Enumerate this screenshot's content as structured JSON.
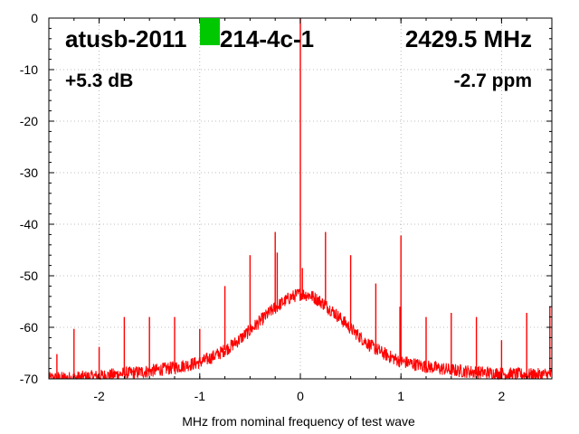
{
  "chart_data": {
    "type": "line",
    "xlabel": "MHz from nominal frequency of test wave",
    "ylabel": "",
    "xlim": [
      -2.5,
      2.5
    ],
    "ylim": [
      -70,
      0
    ],
    "x_ticks": [
      -2,
      -1,
      0,
      1,
      2
    ],
    "y_ticks": [
      0,
      -10,
      -20,
      -30,
      -40,
      -50,
      -60,
      -70
    ],
    "x_tick_labels": [
      "-2",
      "-1",
      "0",
      "1",
      "2"
    ],
    "y_tick_labels": [
      "0",
      "-10",
      "-20",
      "-30",
      "-40",
      "-50",
      "-60",
      "-70"
    ],
    "grid": true,
    "series_color": "#ff0000",
    "marker_color": "#00c800",
    "annotations": {
      "device": "atusb-2011",
      "device_suffix": "214-4c-1",
      "frequency": "2429.5 MHz",
      "gain": "+5.3 dB",
      "ppm": "-2.7 ppm"
    },
    "series": [
      {
        "values": [
          {
            "x": -2.5,
            "y": -70
          },
          {
            "x": -2.25,
            "y": -69.8
          },
          {
            "x": -2.0,
            "y": -69.5
          },
          {
            "x": -1.75,
            "y": -69.0
          },
          {
            "x": -1.5,
            "y": -68.5
          },
          {
            "x": -1.25,
            "y": -67.8
          },
          {
            "x": -1.0,
            "y": -66.8
          },
          {
            "x": -0.9,
            "y": -66.0
          },
          {
            "x": -0.8,
            "y": -65.0
          },
          {
            "x": -0.7,
            "y": -63.8
          },
          {
            "x": -0.6,
            "y": -62.3
          },
          {
            "x": -0.5,
            "y": -60.6
          },
          {
            "x": -0.4,
            "y": -58.8
          },
          {
            "x": -0.3,
            "y": -57.0
          },
          {
            "x": -0.2,
            "y": -55.5
          },
          {
            "x": -0.1,
            "y": -54.2
          },
          {
            "x": 0.0,
            "y": -53.5
          },
          {
            "x": 0.1,
            "y": -53.8
          },
          {
            "x": 0.2,
            "y": -55.0
          },
          {
            "x": 0.3,
            "y": -56.5
          },
          {
            "x": 0.4,
            "y": -58.3
          },
          {
            "x": 0.5,
            "y": -60.2
          },
          {
            "x": 0.6,
            "y": -62.0
          },
          {
            "x": 0.7,
            "y": -63.6
          },
          {
            "x": 0.8,
            "y": -64.8
          },
          {
            "x": 0.9,
            "y": -65.8
          },
          {
            "x": 1.0,
            "y": -66.6
          },
          {
            "x": 1.25,
            "y": -67.6
          },
          {
            "x": 1.5,
            "y": -68.3
          },
          {
            "x": 1.75,
            "y": -68.7
          },
          {
            "x": 2.0,
            "y": -69.0
          },
          {
            "x": 2.25,
            "y": -69.2
          },
          {
            "x": 2.5,
            "y": -69.2
          }
        ]
      }
    ],
    "spikes": [
      {
        "x": -2.42,
        "y": -65.2
      },
      {
        "x": -2.25,
        "y": -60.3
      },
      {
        "x": -2.0,
        "y": -63.8
      },
      {
        "x": -1.75,
        "y": -58.0
      },
      {
        "x": -1.5,
        "y": -58.0
      },
      {
        "x": -1.25,
        "y": -58.0
      },
      {
        "x": -1.0,
        "y": -60.3
      },
      {
        "x": -0.75,
        "y": -52.0
      },
      {
        "x": -0.5,
        "y": -46.0
      },
      {
        "x": -0.25,
        "y": -41.5
      },
      {
        "x": -0.23,
        "y": -45.5
      },
      {
        "x": 0.0,
        "y": 0.0
      },
      {
        "x": 0.02,
        "y": -48.5
      },
      {
        "x": 0.25,
        "y": -41.5
      },
      {
        "x": 0.5,
        "y": -46.0
      },
      {
        "x": 0.75,
        "y": -51.5
      },
      {
        "x": 1.0,
        "y": -42.2
      },
      {
        "x": 0.99,
        "y": -56.0
      },
      {
        "x": 1.25,
        "y": -58.0
      },
      {
        "x": 1.5,
        "y": -57.2
      },
      {
        "x": 1.75,
        "y": -58.0
      },
      {
        "x": 2.0,
        "y": -62.5
      },
      {
        "x": 2.25,
        "y": -57.2
      },
      {
        "x": 2.48,
        "y": -56.0
      }
    ]
  }
}
